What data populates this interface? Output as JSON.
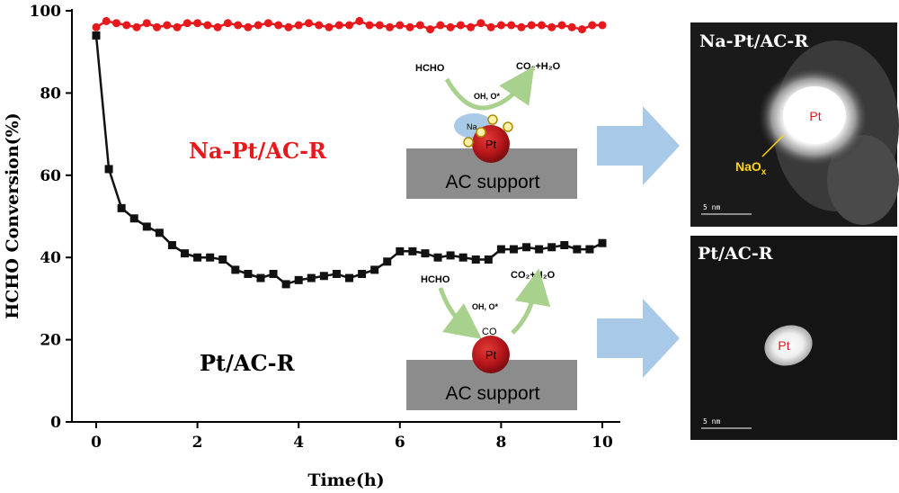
{
  "chart_data": {
    "type": "line",
    "xlabel": "Time(h)",
    "ylabel": "HCHO Conversion(%)",
    "xlim": [
      0,
      10
    ],
    "ylim": [
      0,
      100
    ],
    "xticks": [
      "0",
      "2",
      "4",
      "6",
      "8",
      "10"
    ],
    "yticks": [
      "0",
      "20",
      "40",
      "60",
      "80",
      "100"
    ],
    "grid": false,
    "series": [
      {
        "name": "Na-Pt/AC-R",
        "color": "#e8191c",
        "marker": "circle",
        "x": [
          0,
          0.2,
          0.4,
          0.6,
          0.8,
          1.0,
          1.2,
          1.4,
          1.6,
          1.8,
          2.0,
          2.2,
          2.4,
          2.6,
          2.8,
          3.0,
          3.2,
          3.4,
          3.6,
          3.8,
          4.0,
          4.2,
          4.4,
          4.6,
          4.8,
          5.0,
          5.2,
          5.4,
          5.6,
          5.8,
          6.0,
          6.2,
          6.4,
          6.6,
          6.8,
          7.0,
          7.2,
          7.4,
          7.6,
          7.8,
          8.0,
          8.2,
          8.4,
          8.6,
          8.8,
          9.0,
          9.2,
          9.4,
          9.6,
          9.8,
          10.0
        ],
        "y": [
          96,
          97.5,
          97,
          96.5,
          96,
          97,
          96,
          96.5,
          96,
          97,
          97,
          96.5,
          96,
          97,
          96.5,
          96,
          96.5,
          97,
          96.5,
          96,
          96.5,
          97,
          96.5,
          96,
          96.5,
          96.5,
          97.5,
          96.5,
          96.5,
          96,
          96.5,
          96,
          96.5,
          95.5,
          96.5,
          96,
          96.5,
          96,
          97,
          96,
          96.5,
          96.5,
          96,
          96.5,
          96.5,
          96,
          96.5,
          96,
          95.5,
          96.5,
          96.5
        ]
      },
      {
        "name": "Pt/AC-R",
        "color": "#111111",
        "marker": "square",
        "x": [
          0,
          0.25,
          0.5,
          0.75,
          1.0,
          1.25,
          1.5,
          1.75,
          2.0,
          2.25,
          2.5,
          2.75,
          3.0,
          3.25,
          3.5,
          3.75,
          4.0,
          4.25,
          4.5,
          4.75,
          5.0,
          5.25,
          5.5,
          5.75,
          6.0,
          6.25,
          6.5,
          6.75,
          7.0,
          7.25,
          7.5,
          7.75,
          8.0,
          8.25,
          8.5,
          8.75,
          9.0,
          9.25,
          9.5,
          9.75,
          10.0
        ],
        "y": [
          94,
          61.5,
          52,
          49.5,
          47.5,
          46,
          43,
          41,
          40,
          40,
          39.5,
          37,
          36,
          35,
          36,
          33.5,
          34.5,
          35,
          35.5,
          36,
          35,
          36,
          37,
          39,
          41.5,
          41.5,
          41,
          40,
          40.5,
          40,
          39.5,
          39.5,
          42,
          42,
          42.5,
          42,
          42.5,
          43,
          42,
          42,
          43.5
        ]
      }
    ]
  },
  "annotations": {
    "na_series_label": "Na-Pt/AC-R",
    "pt_series_label": "Pt/AC-R"
  },
  "schematic_top": {
    "reactant": "HCHO",
    "product": "CO₂+H₂O",
    "intermediates": "OH, O*",
    "promoter": "Na",
    "metal": "Pt",
    "adsorbate": "O",
    "support": "AC support"
  },
  "schematic_bottom": {
    "reactant": "HCHO",
    "product": "CO₂+H₂O",
    "intermediates": "OH, O*",
    "adsorbate": "CO",
    "metal": "Pt",
    "support": "AC support"
  },
  "micrograph_top": {
    "title": "Na-Pt/AC-R",
    "particle_label": "Pt",
    "shell_label": "NaO",
    "shell_subscript": "x",
    "scale_bar": "5 nm"
  },
  "micrograph_bottom": {
    "title": "Pt/AC-R",
    "particle_label": "Pt",
    "scale_bar": "5 nm"
  },
  "colors": {
    "arrow": "#a9c9e8",
    "support": "#8c8c8c",
    "pt_particle": "#b5151a",
    "na_blob": "#a9c9e8",
    "cycle_arrow": "#a9d18e",
    "shell_label": "#ffd21c"
  }
}
